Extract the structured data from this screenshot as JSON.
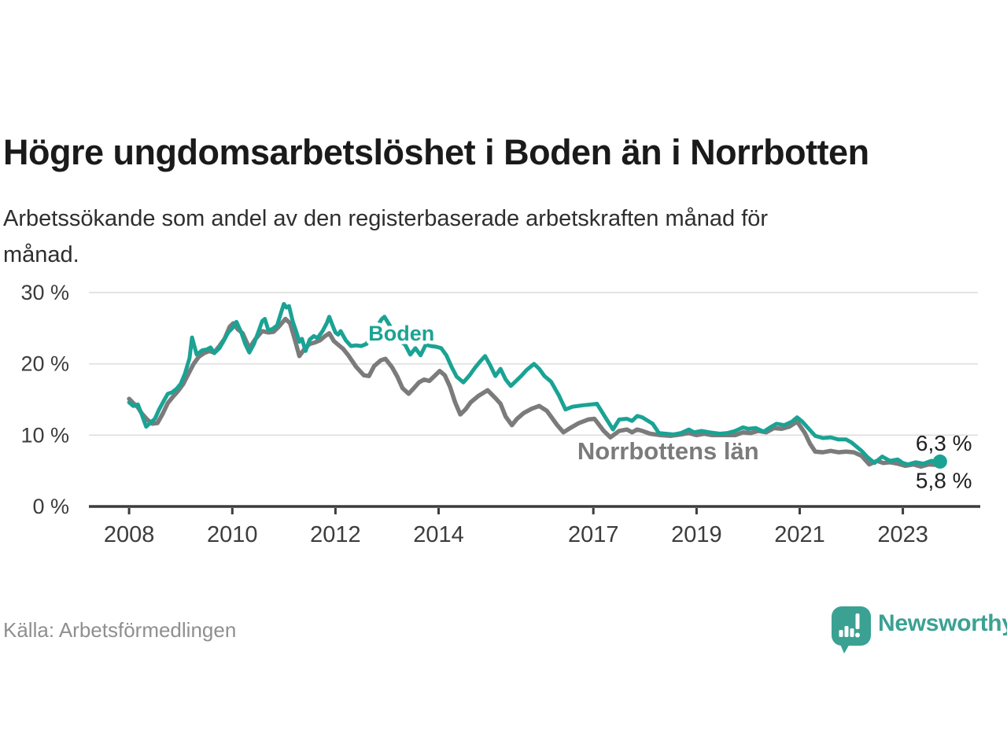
{
  "header": {
    "title": "Högre ungdomsarbetslöshet i Boden än i Norrbotten",
    "subtitle_line1": "Arbetssökande som andel av den registerbaserade arbetskraften månad för",
    "subtitle_line2": "månad."
  },
  "footer": {
    "source": "Källa: Arbetsförmedlingen",
    "brand_name": "Newsworthy",
    "brand_icon": "bar-chart-speech-bubble-icon"
  },
  "colors": {
    "boden": "#1AA394",
    "norrbotten": "#7B7B7B",
    "axis": "#3C3C3C",
    "grid": "#DCDCDC",
    "tick_label": "#3C3C3C",
    "end_label": "#1F1F1F",
    "brand": "#3BA193"
  },
  "chart_data": {
    "type": "line",
    "unit": "%",
    "grid": "horizontal",
    "x_range_years": [
      2007.22,
      2024.5
    ],
    "x_axis": {
      "ticks": [
        {
          "value": 2008,
          "label": "2008"
        },
        {
          "value": 2010,
          "label": "2010"
        },
        {
          "value": 2012,
          "label": "2012"
        },
        {
          "value": 2014,
          "label": "2014"
        },
        {
          "value": 2017,
          "label": "2017"
        },
        {
          "value": 2019,
          "label": "2019"
        },
        {
          "value": 2021,
          "label": "2021"
        },
        {
          "value": 2023,
          "label": "2023"
        }
      ]
    },
    "y_axis": {
      "range": [
        0,
        30
      ],
      "ticks": [
        {
          "value": 0,
          "label": "0 %"
        },
        {
          "value": 10,
          "label": "10 %"
        },
        {
          "value": 20,
          "label": "20 %"
        },
        {
          "value": 30,
          "label": "30 %"
        }
      ]
    },
    "series": [
      {
        "name": "Norrbottens län",
        "color_key": "norrbotten",
        "label": {
          "text": "Norrbottens län",
          "year": 2018.45,
          "value": 7.85
        },
        "end_label": "5,8 %",
        "end_dot": false,
        "last_value": 5.8,
        "x": [
          2008.0,
          2008.08,
          2008.17,
          2008.25,
          2008.35,
          2008.45,
          2008.55,
          2008.65,
          2008.75,
          2008.85,
          2008.95,
          2009.05,
          2009.15,
          2009.25,
          2009.35,
          2009.45,
          2009.55,
          2009.65,
          2009.75,
          2009.85,
          2009.95,
          2010.02,
          2010.1,
          2010.2,
          2010.33,
          2010.45,
          2010.58,
          2010.7,
          2010.8,
          2010.9,
          2011.03,
          2011.12,
          2011.2,
          2011.3,
          2011.4,
          2011.5,
          2011.6,
          2011.7,
          2011.8,
          2011.88,
          2011.97,
          2012.05,
          2012.15,
          2012.25,
          2012.4,
          2012.55,
          2012.65,
          2012.75,
          2012.88,
          2012.97,
          2013.1,
          2013.2,
          2013.3,
          2013.42,
          2013.52,
          2013.62,
          2013.72,
          2013.82,
          2013.92,
          2014.02,
          2014.12,
          2014.22,
          2014.32,
          2014.42,
          2014.52,
          2014.62,
          2014.77,
          2014.95,
          2015.1,
          2015.2,
          2015.3,
          2015.42,
          2015.52,
          2015.65,
          2015.8,
          2015.95,
          2016.1,
          2016.2,
          2016.3,
          2016.42,
          2016.55,
          2016.72,
          2016.9,
          2017.02,
          2017.2,
          2017.33,
          2017.5,
          2017.65,
          2017.75,
          2017.85,
          2017.95,
          2018.1,
          2018.3,
          2018.5,
          2018.7,
          2018.85,
          2019.0,
          2019.15,
          2019.3,
          2019.5,
          2019.75,
          2019.9,
          2020.05,
          2020.2,
          2020.35,
          2020.5,
          2020.65,
          2020.8,
          2020.95,
          2021.1,
          2021.2,
          2021.3,
          2021.45,
          2021.6,
          2021.75,
          2021.9,
          2022.05,
          2022.2,
          2022.35,
          2022.5,
          2022.62,
          2022.75,
          2022.9,
          2023.05,
          2023.2,
          2023.35,
          2023.5,
          2023.72
        ],
        "y": [
          15.1,
          14.5,
          13.9,
          13.0,
          12.2,
          11.6,
          11.7,
          13.0,
          14.5,
          15.4,
          16.2,
          17.2,
          18.6,
          20.0,
          21.0,
          21.5,
          21.8,
          21.6,
          22.5,
          23.5,
          25.2,
          25.7,
          24.9,
          24.3,
          22.2,
          23.5,
          24.6,
          24.4,
          24.5,
          25.2,
          26.3,
          25.7,
          23.7,
          21.1,
          22.1,
          22.8,
          23.0,
          23.3,
          23.9,
          24.3,
          23.2,
          22.7,
          22.1,
          21.2,
          19.6,
          18.4,
          18.3,
          19.7,
          20.5,
          20.7,
          19.5,
          18.2,
          16.6,
          15.8,
          16.6,
          17.4,
          17.8,
          17.6,
          18.3,
          19.0,
          18.4,
          16.8,
          14.6,
          12.9,
          13.6,
          14.6,
          15.5,
          16.3,
          15.2,
          14.4,
          12.6,
          11.4,
          12.3,
          13.1,
          13.7,
          14.1,
          13.4,
          12.4,
          11.4,
          10.4,
          11.0,
          11.7,
          12.2,
          12.3,
          10.6,
          9.7,
          10.6,
          10.8,
          10.4,
          10.8,
          10.6,
          10.2,
          10.0,
          9.9,
          10.1,
          10.3,
          10.0,
          10.2,
          10.0,
          10.0,
          10.0,
          10.4,
          10.3,
          10.6,
          10.4,
          11.0,
          10.9,
          11.2,
          11.9,
          10.3,
          8.8,
          7.7,
          7.6,
          7.8,
          7.6,
          7.7,
          7.6,
          7.1,
          5.9,
          6.4,
          6.1,
          6.2,
          6.0,
          5.7,
          5.9,
          5.6,
          5.9,
          5.8
        ]
      },
      {
        "name": "Boden",
        "color_key": "boden",
        "label": {
          "text": "Boden",
          "year": 2013.28,
          "value": 24.4
        },
        "end_label": "6,3 %",
        "end_dot": true,
        "last_value": 6.3,
        "x": [
          2008.0,
          2008.08,
          2008.17,
          2008.25,
          2008.33,
          2008.42,
          2008.5,
          2008.58,
          2008.67,
          2008.75,
          2008.83,
          2008.92,
          2009.0,
          2009.08,
          2009.17,
          2009.22,
          2009.31,
          2009.42,
          2009.5,
          2009.58,
          2009.65,
          2009.75,
          2009.83,
          2009.92,
          2010.0,
          2010.08,
          2010.17,
          2010.25,
          2010.33,
          2010.42,
          2010.5,
          2010.58,
          2010.63,
          2010.7,
          2010.78,
          2010.87,
          2010.95,
          2011.0,
          2011.05,
          2011.1,
          2011.17,
          2011.25,
          2011.3,
          2011.35,
          2011.42,
          2011.5,
          2011.58,
          2011.65,
          2011.75,
          2011.83,
          2011.88,
          2011.95,
          2012.0,
          2012.05,
          2012.1,
          2012.2,
          2012.3,
          2012.4,
          2012.5,
          2012.6,
          2012.75,
          2012.9,
          2012.95,
          2013.05,
          2013.15,
          2013.25,
          2013.35,
          2013.45,
          2013.55,
          2013.65,
          2013.75,
          2013.85,
          2013.95,
          2014.05,
          2014.15,
          2014.25,
          2014.35,
          2014.48,
          2014.6,
          2014.7,
          2014.8,
          2014.9,
          2015.0,
          2015.1,
          2015.2,
          2015.3,
          2015.4,
          2015.5,
          2015.6,
          2015.7,
          2015.85,
          2015.95,
          2016.05,
          2016.18,
          2016.33,
          2016.46,
          2016.6,
          2016.8,
          2016.95,
          2017.07,
          2017.25,
          2017.38,
          2017.5,
          2017.65,
          2017.75,
          2017.85,
          2017.95,
          2018.15,
          2018.27,
          2018.4,
          2018.55,
          2018.7,
          2018.85,
          2018.95,
          2019.1,
          2019.25,
          2019.45,
          2019.6,
          2019.75,
          2019.9,
          2020.0,
          2020.15,
          2020.3,
          2020.45,
          2020.55,
          2020.7,
          2020.85,
          2020.95,
          2021.05,
          2021.15,
          2021.3,
          2021.45,
          2021.6,
          2021.75,
          2021.9,
          2022.0,
          2022.1,
          2022.2,
          2022.3,
          2022.45,
          2022.6,
          2022.75,
          2022.9,
          2023.0,
          2023.1,
          2023.25,
          2023.4,
          2023.55,
          2023.72
        ],
        "y": [
          14.6,
          14.1,
          14.3,
          12.8,
          11.2,
          11.8,
          12.3,
          13.6,
          14.8,
          15.8,
          16.0,
          16.5,
          17.2,
          18.6,
          20.8,
          23.7,
          21.3,
          21.9,
          22.0,
          22.3,
          21.5,
          22.2,
          23.2,
          24.4,
          25.0,
          25.9,
          24.5,
          22.8,
          21.6,
          22.8,
          24.4,
          26.0,
          26.3,
          24.7,
          24.9,
          25.4,
          27.3,
          28.4,
          27.9,
          28.1,
          26.0,
          24.3,
          23.1,
          23.5,
          21.8,
          23.4,
          23.9,
          23.6,
          24.6,
          25.7,
          26.6,
          25.3,
          24.4,
          24.1,
          24.6,
          23.3,
          22.5,
          22.6,
          22.5,
          22.8,
          24.6,
          26.3,
          26.6,
          25.4,
          24.0,
          23.2,
          22.7,
          21.3,
          22.2,
          21.2,
          22.7,
          22.5,
          22.4,
          22.2,
          21.2,
          19.6,
          18.2,
          17.4,
          18.4,
          19.4,
          20.3,
          21.1,
          19.8,
          18.3,
          19.3,
          17.8,
          16.9,
          17.6,
          18.3,
          19.1,
          20.0,
          19.3,
          18.3,
          17.5,
          15.6,
          13.6,
          14.0,
          14.2,
          14.3,
          14.4,
          12.3,
          10.8,
          12.2,
          12.3,
          12.0,
          12.7,
          12.5,
          11.6,
          10.3,
          10.2,
          10.1,
          10.3,
          10.8,
          10.4,
          10.6,
          10.4,
          10.2,
          10.3,
          10.6,
          11.1,
          10.9,
          11.0,
          10.5,
          11.2,
          11.6,
          11.4,
          11.9,
          12.5,
          11.9,
          11.1,
          9.9,
          9.6,
          9.7,
          9.4,
          9.4,
          9.0,
          8.4,
          7.8,
          7.0,
          6.1,
          7.0,
          6.4,
          6.6,
          6.1,
          5.9,
          6.2,
          6.0,
          6.4,
          6.3
        ]
      }
    ]
  }
}
